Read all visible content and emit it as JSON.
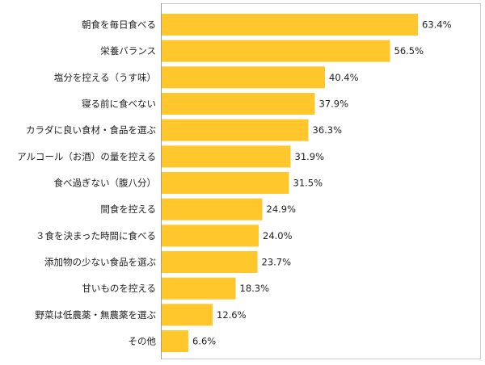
{
  "chart_data": {
    "type": "bar",
    "orientation": "horizontal",
    "title": "",
    "xlabel": "",
    "ylabel": "",
    "xlim": [
      0,
      100
    ],
    "grid": false,
    "legend": "none",
    "categories": [
      "朝食を毎日食べる",
      "栄養バランス",
      "塩分を控える（うす味）",
      "寝る前に食べない",
      "カラダに良い食材・食品を選ぶ",
      "アルコール（お酒）の量を控える",
      "食べ過ぎない（腹八分）",
      "間食を控える",
      "３食を決まった時間に食べる",
      "添加物の少ない食品を選ぶ",
      "甘いものを控える",
      "野菜は低農薬・無農薬を選ぶ",
      "その他"
    ],
    "values": [
      63.4,
      56.5,
      40.4,
      37.9,
      36.3,
      31.9,
      31.5,
      24.9,
      24.0,
      23.7,
      18.3,
      12.6,
      6.6
    ],
    "value_labels": [
      "63.4%",
      "56.5%",
      "40.4%",
      "37.9%",
      "36.3%",
      "31.9%",
      "31.5%",
      "24.9%",
      "24.0%",
      "23.7%",
      "18.3%",
      "12.6%",
      "6.6%"
    ],
    "colors": {
      "bar": "#FFC72C",
      "axis": "#999999",
      "frame": "#cccccc",
      "text": "#222222"
    }
  }
}
